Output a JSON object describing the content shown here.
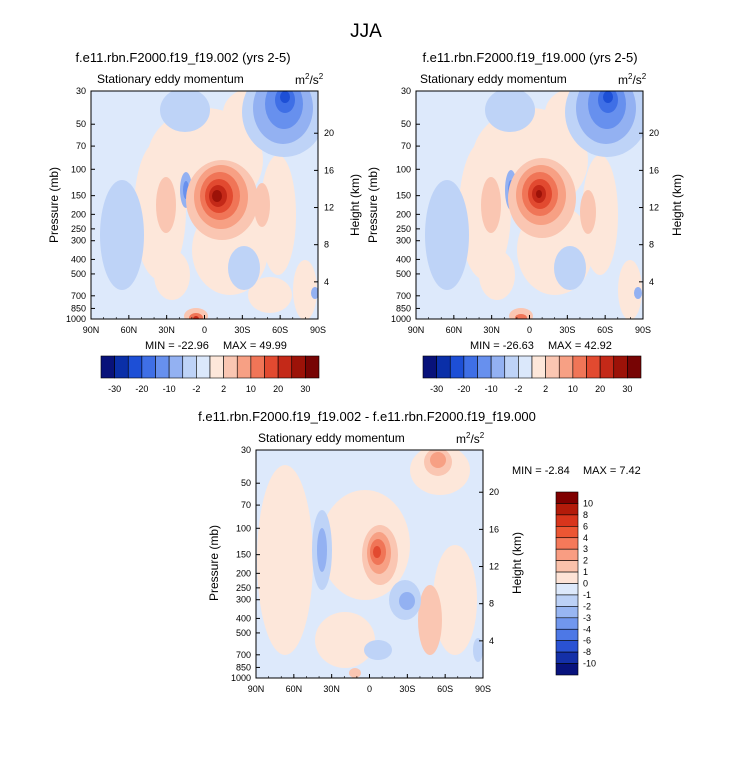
{
  "page": {
    "title": "JJA"
  },
  "chart_data": [
    {
      "type": "heatmap",
      "title": "f.e11.rbn.F2000.f19_f19.002 (yrs 2-5)",
      "subtitle_left": "Stationary eddy momentum",
      "units": "m2/s2",
      "units_base": "m",
      "units_mid": "/s",
      "units_sup": "2",
      "xlabel": "",
      "ylabel": "Pressure (mb)",
      "ylabel_right": "Height (km)",
      "x_ticks": [
        "90N",
        "60N",
        "30N",
        "0",
        "30S",
        "60S",
        "90S"
      ],
      "y_ticks": [
        "30",
        "50",
        "70",
        "100",
        "150",
        "200",
        "250",
        "300",
        "400",
        "500",
        "700",
        "850",
        "1000"
      ],
      "y_ticks_right": [
        "20",
        "16",
        "12",
        "8",
        "4"
      ],
      "min_label": "MIN = -22.96",
      "max_label": "MAX = 49.99",
      "min": -22.96,
      "max": 49.99,
      "colorbar_levels": [
        "-30",
        "-20",
        "-10",
        "-2",
        "2",
        "10",
        "20",
        "30"
      ]
    },
    {
      "type": "heatmap",
      "title": "f.e11.rbn.F2000.f19_f19.000 (yrs 2-5)",
      "subtitle_left": "Stationary eddy momentum",
      "units": "m2/s2",
      "units_base": "m",
      "units_mid": "/s",
      "units_sup": "2",
      "xlabel": "",
      "ylabel": "Pressure (mb)",
      "ylabel_right": "Height (km)",
      "x_ticks": [
        "90N",
        "60N",
        "30N",
        "0",
        "30S",
        "60S",
        "90S"
      ],
      "y_ticks": [
        "30",
        "50",
        "70",
        "100",
        "150",
        "200",
        "250",
        "300",
        "400",
        "500",
        "700",
        "850",
        "1000"
      ],
      "y_ticks_right": [
        "20",
        "16",
        "12",
        "8",
        "4"
      ],
      "min_label": "MIN = -26.63",
      "max_label": "MAX = 42.92",
      "min": -26.63,
      "max": 42.92,
      "colorbar_levels": [
        "-30",
        "-20",
        "-10",
        "-2",
        "2",
        "10",
        "20",
        "30"
      ]
    },
    {
      "type": "heatmap",
      "title": "f.e11.rbn.F2000.f19_f19.002 - f.e11.rbn.F2000.f19_f19.000",
      "subtitle_left": "Stationary eddy momentum",
      "units": "m2/s2",
      "units_base": "m",
      "units_mid": "/s",
      "units_sup": "2",
      "xlabel": "",
      "ylabel": "Pressure (mb)",
      "ylabel_right": "Height (km)",
      "x_ticks": [
        "90N",
        "60N",
        "30N",
        "0",
        "30S",
        "60S",
        "90S"
      ],
      "y_ticks": [
        "30",
        "50",
        "70",
        "100",
        "150",
        "200",
        "250",
        "300",
        "400",
        "500",
        "700",
        "850",
        "1000"
      ],
      "y_ticks_right": [
        "20",
        "16",
        "12",
        "8",
        "4"
      ],
      "min_label": "MIN =  -2.84",
      "max_label": "MAX =  7.42",
      "min": -2.84,
      "max": 7.42,
      "colorbar_levels": [
        "10",
        "8",
        "6",
        "4",
        "3",
        "2",
        "1",
        "0",
        "-1",
        "-2",
        "-3",
        "-4",
        "-6",
        "-8",
        "-10"
      ]
    }
  ],
  "palettes": {
    "colorbar_horizontal": [
      "#08127a",
      "#0a2fa8",
      "#1d4fd6",
      "#3f6fe6",
      "#6790ee",
      "#93b1f2",
      "#bed3f7",
      "#dbe8fb",
      "#fde7da",
      "#fac6b2",
      "#f7a084",
      "#f07557",
      "#e24a30",
      "#c42918",
      "#9c1208",
      "#770404"
    ],
    "colorbar_vertical": [
      "#800000",
      "#b31b0a",
      "#d8351c",
      "#ec5633",
      "#f5795a",
      "#f99d82",
      "#fbc2ab",
      "#fde3d6",
      "#dde9fb",
      "#bcd1f6",
      "#98b6f2",
      "#7197ee",
      "#4d78e6",
      "#2a52d3",
      "#1430a8",
      "#08137d"
    ]
  }
}
